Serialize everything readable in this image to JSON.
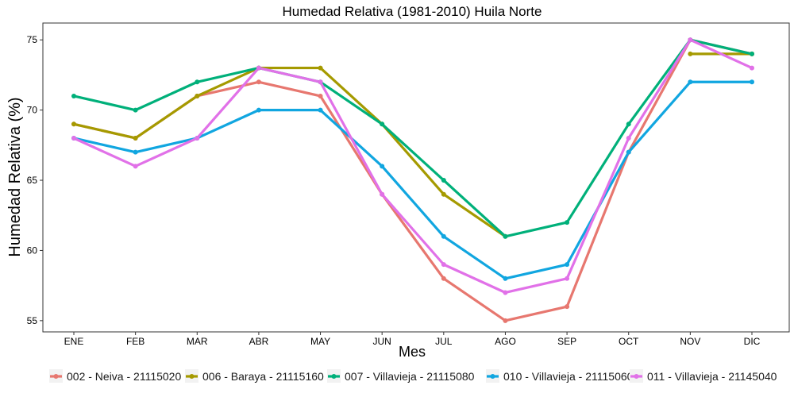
{
  "chart_data": {
    "type": "line",
    "title": "Humedad Relativa (1981-2010)  Huila Norte",
    "xlabel": "Mes",
    "ylabel": "Humedad Relativa  (%)",
    "categories": [
      "ENE",
      "FEB",
      "MAR",
      "ABR",
      "MAY",
      "JUN",
      "JUL",
      "AGO",
      "SEP",
      "OCT",
      "NOV",
      "DIC"
    ],
    "ylim": [
      54.2,
      76.2
    ],
    "yticks": [
      55,
      60,
      65,
      70,
      75
    ],
    "grid": false,
    "legend_position": "bottom",
    "series": [
      {
        "name": "002 - Neiva - 21115020",
        "color": "#E7776F",
        "values": [
          69,
          68,
          71,
          72,
          71,
          64,
          58,
          55,
          56,
          67,
          75,
          74
        ]
      },
      {
        "name": "006 - Baraya - 21115160",
        "color": "#A59A00",
        "values": [
          69,
          68,
          71,
          73,
          73,
          69,
          64,
          61,
          null,
          null,
          74,
          74
        ]
      },
      {
        "name": "007 - Villavieja - 21115080",
        "color": "#00B07A",
        "values": [
          71,
          70,
          72,
          73,
          72,
          69,
          65,
          61,
          62,
          69,
          75,
          74
        ]
      },
      {
        "name": "010 - Villavieja - 21115060",
        "color": "#11A6E0",
        "values": [
          68,
          67,
          68,
          70,
          70,
          66,
          61,
          58,
          59,
          67,
          72,
          72
        ]
      },
      {
        "name": "011 - Villavieja - 21145040",
        "color": "#E171E8",
        "values": [
          68,
          66,
          68,
          73,
          72,
          64,
          59,
          57,
          58,
          68,
          75,
          73
        ]
      }
    ]
  }
}
